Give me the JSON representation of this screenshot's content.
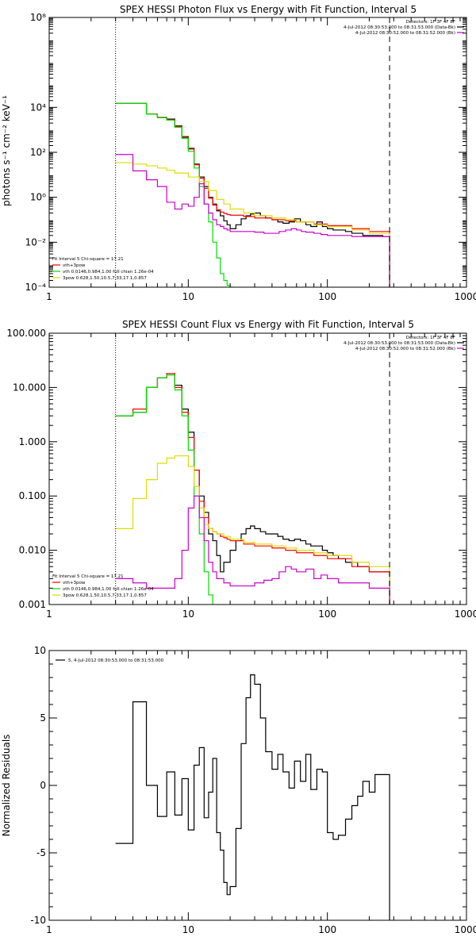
{
  "chart_data": [
    {
      "type": "line",
      "title": "SPEX HESSI Photon Flux vs Energy with Fit Function, Interval 5",
      "xlabel": "",
      "ylabel": "photons s⁻¹ cm⁻² keV⁻¹",
      "xscale": "log",
      "yscale": "log",
      "xlim": [
        1,
        1000
      ],
      "ylim": [
        0.0001,
        100000000
      ],
      "x_ticks": [
        1,
        10,
        100,
        1000
      ],
      "x_tick_labels": [
        "1",
        "10",
        "100",
        "1000"
      ],
      "y_ticks": [
        0.0001,
        0.01,
        1,
        100,
        10000,
        100000000
      ],
      "y_tick_labels": [
        "10⁻⁴",
        "10⁻²",
        "10⁰",
        "10²",
        "10⁴",
        "10⁸"
      ],
      "vlines": [
        {
          "x": 3,
          "style": "dotted"
        },
        {
          "x": 280,
          "style": "dashed"
        }
      ],
      "info_lines": [
        "Detectors: 1F 3F 4F 8F",
        "4-Jul-2012 08:30:53.000 to 08:31:53.000 (Data-Bk)",
        "4-Jul-2012 08:30:52.000 to 08:31:52.000 (Bk)"
      ],
      "info_colors": [
        "#000000",
        "#000000",
        "#cc00cc"
      ],
      "fit_text": "Fit Interval 5   Chi-square = 17.21",
      "legend": [
        {
          "label": "vth+3pow",
          "color": "#ff0000"
        },
        {
          "label": "vth 0.0146,0.984,1.00  full chian 1.26e-04",
          "color": "#00dd00"
        },
        {
          "label": "3pow 0.628,1.50,10.5,7.33,17.1,0.857",
          "color": "#dddd00"
        }
      ],
      "series": [
        {
          "role": "data",
          "color": "#000000",
          "x": [
            3,
            4,
            5,
            6,
            7,
            8,
            9,
            10,
            11,
            12,
            13,
            14,
            15,
            16,
            17,
            18,
            19,
            20,
            22,
            24,
            26,
            28,
            30,
            33,
            36,
            40,
            44,
            48,
            53,
            58,
            64,
            70,
            76,
            84,
            92,
            100,
            110,
            120,
            135,
            150,
            165,
            180,
            200,
            220,
            250,
            280
          ],
          "y": [
            15000,
            15000,
            5000,
            3500,
            3000,
            1500,
            500,
            150,
            30,
            8,
            3,
            1,
            0.5,
            0.25,
            0.15,
            0.09,
            0.06,
            0.04,
            0.06,
            0.11,
            0.15,
            0.18,
            0.2,
            0.15,
            0.12,
            0.1,
            0.08,
            0.07,
            0.08,
            0.11,
            0.08,
            0.06,
            0.05,
            0.08,
            0.05,
            0.04,
            0.035,
            0.035,
            0.03,
            0.025,
            0.025,
            0.02,
            0.02,
            0.02,
            0.018,
            0.0001
          ]
        },
        {
          "role": "model",
          "color": "#ff0000",
          "x": [
            3,
            4,
            5,
            6,
            7,
            8,
            9,
            10,
            11,
            12,
            13,
            14,
            15,
            16,
            17,
            18,
            19,
            20,
            25,
            30,
            40,
            50,
            60,
            80,
            100,
            150,
            200,
            280
          ],
          "y": [
            15000,
            15000,
            5000,
            3600,
            2800,
            1400,
            450,
            140,
            28,
            7,
            2.5,
            0.9,
            0.45,
            0.28,
            0.22,
            0.19,
            0.17,
            0.16,
            0.14,
            0.12,
            0.1,
            0.09,
            0.08,
            0.065,
            0.055,
            0.04,
            0.03,
            0.0001
          ]
        },
        {
          "role": "component",
          "color": "#00dd00",
          "x": [
            3,
            4,
            5,
            6,
            7,
            8,
            9,
            10,
            11,
            12,
            13,
            14,
            15,
            16,
            17,
            18,
            19,
            20,
            21
          ],
          "y": [
            15000,
            15000,
            5000,
            3500,
            2700,
            1300,
            420,
            110,
            20,
            3,
            0.5,
            0.08,
            0.01,
            0.002,
            0.0004,
            0.0002,
            0.00012,
            0.0001,
            0.0001
          ]
        },
        {
          "role": "component",
          "color": "#dddd00",
          "x": [
            3,
            4,
            5,
            6,
            7,
            8,
            10,
            12,
            14,
            16,
            18,
            20,
            25,
            30,
            40,
            50,
            60,
            80,
            100,
            150,
            200,
            280
          ],
          "y": [
            35,
            30,
            25,
            20,
            16,
            12,
            8,
            5,
            2,
            0.8,
            0.5,
            0.3,
            0.2,
            0.15,
            0.12,
            0.1,
            0.08,
            0.06,
            0.05,
            0.035,
            0.025,
            0.0001
          ]
        },
        {
          "role": "background",
          "color": "#cc00cc",
          "x": [
            3,
            4,
            5,
            6,
            7,
            8,
            9,
            10,
            11,
            12,
            13,
            14,
            15,
            16,
            17,
            18,
            19,
            20,
            22,
            25,
            30,
            35,
            40,
            45,
            50,
            55,
            60,
            65,
            70,
            80,
            90,
            100,
            120,
            150,
            200,
            280
          ],
          "y": [
            80,
            15,
            6,
            3,
            0.6,
            0.3,
            0.5,
            0.4,
            1,
            4,
            0.5,
            0.2,
            0.1,
            0.06,
            0.05,
            0.04,
            0.035,
            0.03,
            0.03,
            0.03,
            0.028,
            0.025,
            0.025,
            0.03,
            0.035,
            0.04,
            0.035,
            0.03,
            0.028,
            0.025,
            0.022,
            0.02,
            0.02,
            0.018,
            0.018,
            0.0001
          ]
        }
      ]
    },
    {
      "type": "line",
      "title": "SPEX HESSI Count Flux vs Energy with Fit Function, Interval 5",
      "xlabel": "",
      "ylabel": "",
      "xscale": "log",
      "yscale": "log",
      "xlim": [
        1,
        1000
      ],
      "ylim": [
        0.001,
        100
      ],
      "x_ticks": [
        1,
        10,
        100,
        1000
      ],
      "x_tick_labels": [
        "1",
        "10",
        "100",
        "1000"
      ],
      "y_ticks": [
        0.001,
        0.01,
        0.1,
        1,
        10,
        100
      ],
      "y_tick_labels": [
        "0.001",
        "0.010",
        "0.100",
        "1.000",
        "10.000",
        "100.000"
      ],
      "vlines": [
        {
          "x": 3,
          "style": "dotted"
        },
        {
          "x": 280,
          "style": "dashed"
        }
      ],
      "info_lines": [
        "Detectors: 1F 3F 4F 8F",
        "4-Jul-2012 08:30:53.000 to 08:31:53.000 (Data-Bk)",
        "4-Jul-2012 08:30:52.000 to 08:31:52.000 (Bk)"
      ],
      "info_colors": [
        "#000000",
        "#000000",
        "#cc00cc"
      ],
      "fit_text": "Fit Interval 5   Chi-square = 17.21",
      "legend": [
        {
          "label": "vth+3pow",
          "color": "#ff0000"
        },
        {
          "label": "vth 0.0146,0.984,1.00  full chian 1.26e-04",
          "color": "#00dd00"
        },
        {
          "label": "3pow 0.628,1.50,10.5,7.33,17.1,0.857",
          "color": "#dddd00"
        }
      ],
      "series": [
        {
          "role": "data",
          "color": "#000000",
          "x": [
            3,
            4,
            5,
            6,
            7,
            8,
            9,
            10,
            11,
            12,
            13,
            14,
            15,
            16,
            17,
            18,
            19,
            20,
            22,
            24,
            26,
            28,
            30,
            33,
            36,
            40,
            44,
            48,
            53,
            58,
            64,
            70,
            76,
            84,
            92,
            100,
            110,
            120,
            135,
            150,
            165,
            180,
            200,
            220,
            250,
            280
          ],
          "y": [
            3,
            3.5,
            10,
            15,
            18,
            11,
            4,
            1.5,
            0.3,
            0.1,
            0.05,
            0.02,
            0.015,
            0.008,
            0.004,
            0.006,
            0.006,
            0.01,
            0.015,
            0.02,
            0.025,
            0.028,
            0.025,
            0.022,
            0.02,
            0.02,
            0.018,
            0.016,
            0.015,
            0.016,
            0.015,
            0.013,
            0.012,
            0.012,
            0.01,
            0.009,
            0.008,
            0.007,
            0.006,
            0.006,
            0.005,
            0.005,
            0.004,
            0.004,
            0.004,
            0.001
          ]
        },
        {
          "role": "model",
          "color": "#ff0000",
          "x": [
            3,
            4,
            5,
            6,
            7,
            8,
            9,
            10,
            11,
            12,
            13,
            14,
            15,
            16,
            17,
            18,
            19,
            20,
            25,
            30,
            40,
            50,
            60,
            80,
            100,
            150,
            200,
            280
          ],
          "y": [
            3,
            4,
            10,
            15,
            18,
            10,
            3.5,
            1.2,
            0.3,
            0.08,
            0.04,
            0.025,
            0.022,
            0.02,
            0.018,
            0.017,
            0.016,
            0.015,
            0.013,
            0.012,
            0.011,
            0.01,
            0.009,
            0.008,
            0.007,
            0.005,
            0.004,
            0.001
          ]
        },
        {
          "role": "component",
          "color": "#00dd00",
          "x": [
            3,
            4,
            5,
            6,
            7,
            8,
            9,
            10,
            11,
            12,
            13,
            14,
            15
          ],
          "y": [
            3,
            3.5,
            10,
            15,
            17,
            9,
            3,
            0.7,
            0.1,
            0.02,
            0.004,
            0.0015,
            0.001
          ]
        },
        {
          "role": "component",
          "color": "#dddd00",
          "x": [
            3,
            4,
            5,
            6,
            7,
            8,
            9,
            10,
            11,
            12,
            13,
            14,
            15,
            16,
            18,
            20,
            25,
            30,
            40,
            50,
            60,
            80,
            100,
            150,
            200,
            280
          ],
          "y": [
            0.025,
            0.09,
            0.2,
            0.4,
            0.5,
            0.55,
            0.55,
            0.35,
            0.15,
            0.06,
            0.03,
            0.025,
            0.022,
            0.02,
            0.018,
            0.016,
            0.014,
            0.013,
            0.012,
            0.011,
            0.01,
            0.009,
            0.008,
            0.006,
            0.005,
            0.001
          ]
        },
        {
          "role": "background",
          "color": "#cc00cc",
          "x": [
            3,
            4,
            5,
            6,
            7,
            8,
            9,
            10,
            11,
            12,
            13,
            14,
            15,
            16,
            18,
            20,
            25,
            30,
            35,
            40,
            45,
            50,
            55,
            60,
            70,
            80,
            90,
            100,
            120,
            150,
            200,
            280
          ],
          "y": [
            0.003,
            0.0025,
            0.002,
            0.002,
            0.002,
            0.003,
            0.01,
            0.06,
            0.1,
            0.04,
            0.015,
            0.006,
            0.004,
            0.003,
            0.0025,
            0.0022,
            0.0022,
            0.0025,
            0.0028,
            0.003,
            0.004,
            0.005,
            0.0045,
            0.004,
            0.0045,
            0.003,
            0.0035,
            0.003,
            0.0025,
            0.0025,
            0.002,
            0.001
          ]
        }
      ]
    },
    {
      "type": "line",
      "title": "",
      "xlabel": "",
      "ylabel": "Normalized Residuals",
      "xscale": "log",
      "yscale": "linear",
      "xlim": [
        1,
        1000
      ],
      "ylim": [
        -10,
        10
      ],
      "x_ticks": [
        1,
        10,
        100,
        1000
      ],
      "x_tick_labels": [
        "1",
        "10",
        "100",
        "1000"
      ],
      "y_ticks": [
        -10,
        -5,
        0,
        5,
        10
      ],
      "y_tick_labels": [
        "-10",
        "-5",
        "0",
        "5",
        "10"
      ],
      "legend": [
        {
          "label": "5, 4-Jul-2012 08:30:53.000 to 08:31:53.000",
          "color": "#000000"
        }
      ],
      "series": [
        {
          "role": "residuals",
          "color": "#000000",
          "x": [
            3,
            4,
            5,
            6,
            7,
            8,
            9,
            10,
            11,
            12,
            13,
            14,
            15,
            16,
            17,
            18,
            19,
            20,
            22,
            24,
            26,
            28,
            30,
            33,
            36,
            40,
            44,
            48,
            53,
            58,
            64,
            70,
            76,
            84,
            92,
            100,
            110,
            120,
            135,
            150,
            165,
            180,
            200,
            220,
            250,
            280
          ],
          "y": [
            -4.3,
            6.2,
            0,
            -2.3,
            1,
            -2.2,
            0.5,
            -3.3,
            1.5,
            2.8,
            -2.4,
            -0.5,
            2,
            -3.5,
            -4.8,
            -7.2,
            -8.1,
            -7.5,
            -3.2,
            3.1,
            6.5,
            8.2,
            7.5,
            5,
            2.5,
            1.2,
            2.3,
            1,
            -0.2,
            1.8,
            0.3,
            2.3,
            -0.3,
            1.2,
            1,
            -3.5,
            -4,
            -3.7,
            -2.5,
            -1.5,
            -0.8,
            0.3,
            -0.5,
            0.8,
            0.8,
            -10
          ]
        }
      ]
    }
  ]
}
